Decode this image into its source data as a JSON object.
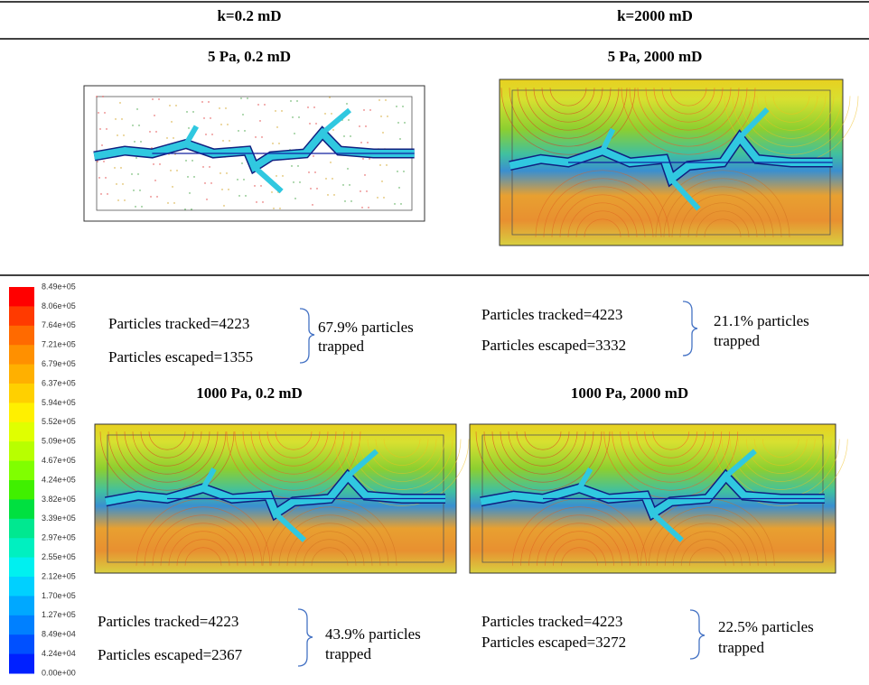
{
  "header": {
    "columns": [
      "k=0.2 mD",
      "k=2000 mD"
    ]
  },
  "panels": [
    {
      "title": "5 Pa, 0.2 mD",
      "tracked": "Particles tracked=4223",
      "escaped": "Particles escaped=1355",
      "trapped_line1": "67.9% particles",
      "trapped_line2": "trapped"
    },
    {
      "title": "5 Pa, 2000 mD",
      "tracked": "Particles tracked=4223",
      "escaped": "Particles escaped=3332",
      "trapped_line1": "21.1% particles",
      "trapped_line2": "trapped"
    },
    {
      "title": "1000 Pa, 0.2 mD",
      "tracked": "Particles tracked=4223",
      "escaped": "Particles escaped=2367",
      "trapped_line1": "43.9% particles",
      "trapped_line2": "trapped"
    },
    {
      "title": "1000 Pa, 2000 mD",
      "tracked": "Particles tracked=4223",
      "escaped": "Particles escaped=3272",
      "trapped_line1": "22.5% particles",
      "trapped_line2": "trapped"
    }
  ],
  "colorbar": {
    "labels": [
      "8.49e+05",
      "8.06e+05",
      "7.64e+05",
      "7.21e+05",
      "6.79e+05",
      "6.37e+05",
      "5.94e+05",
      "5.52e+05",
      "5.09e+05",
      "4.67e+05",
      "4.24e+05",
      "3.82e+05",
      "3.39e+05",
      "2.97e+05",
      "2.55e+05",
      "2.12e+05",
      "1.70e+05",
      "1.27e+05",
      "8.49e+04",
      "4.24e+04",
      "0.00e+00"
    ]
  }
}
